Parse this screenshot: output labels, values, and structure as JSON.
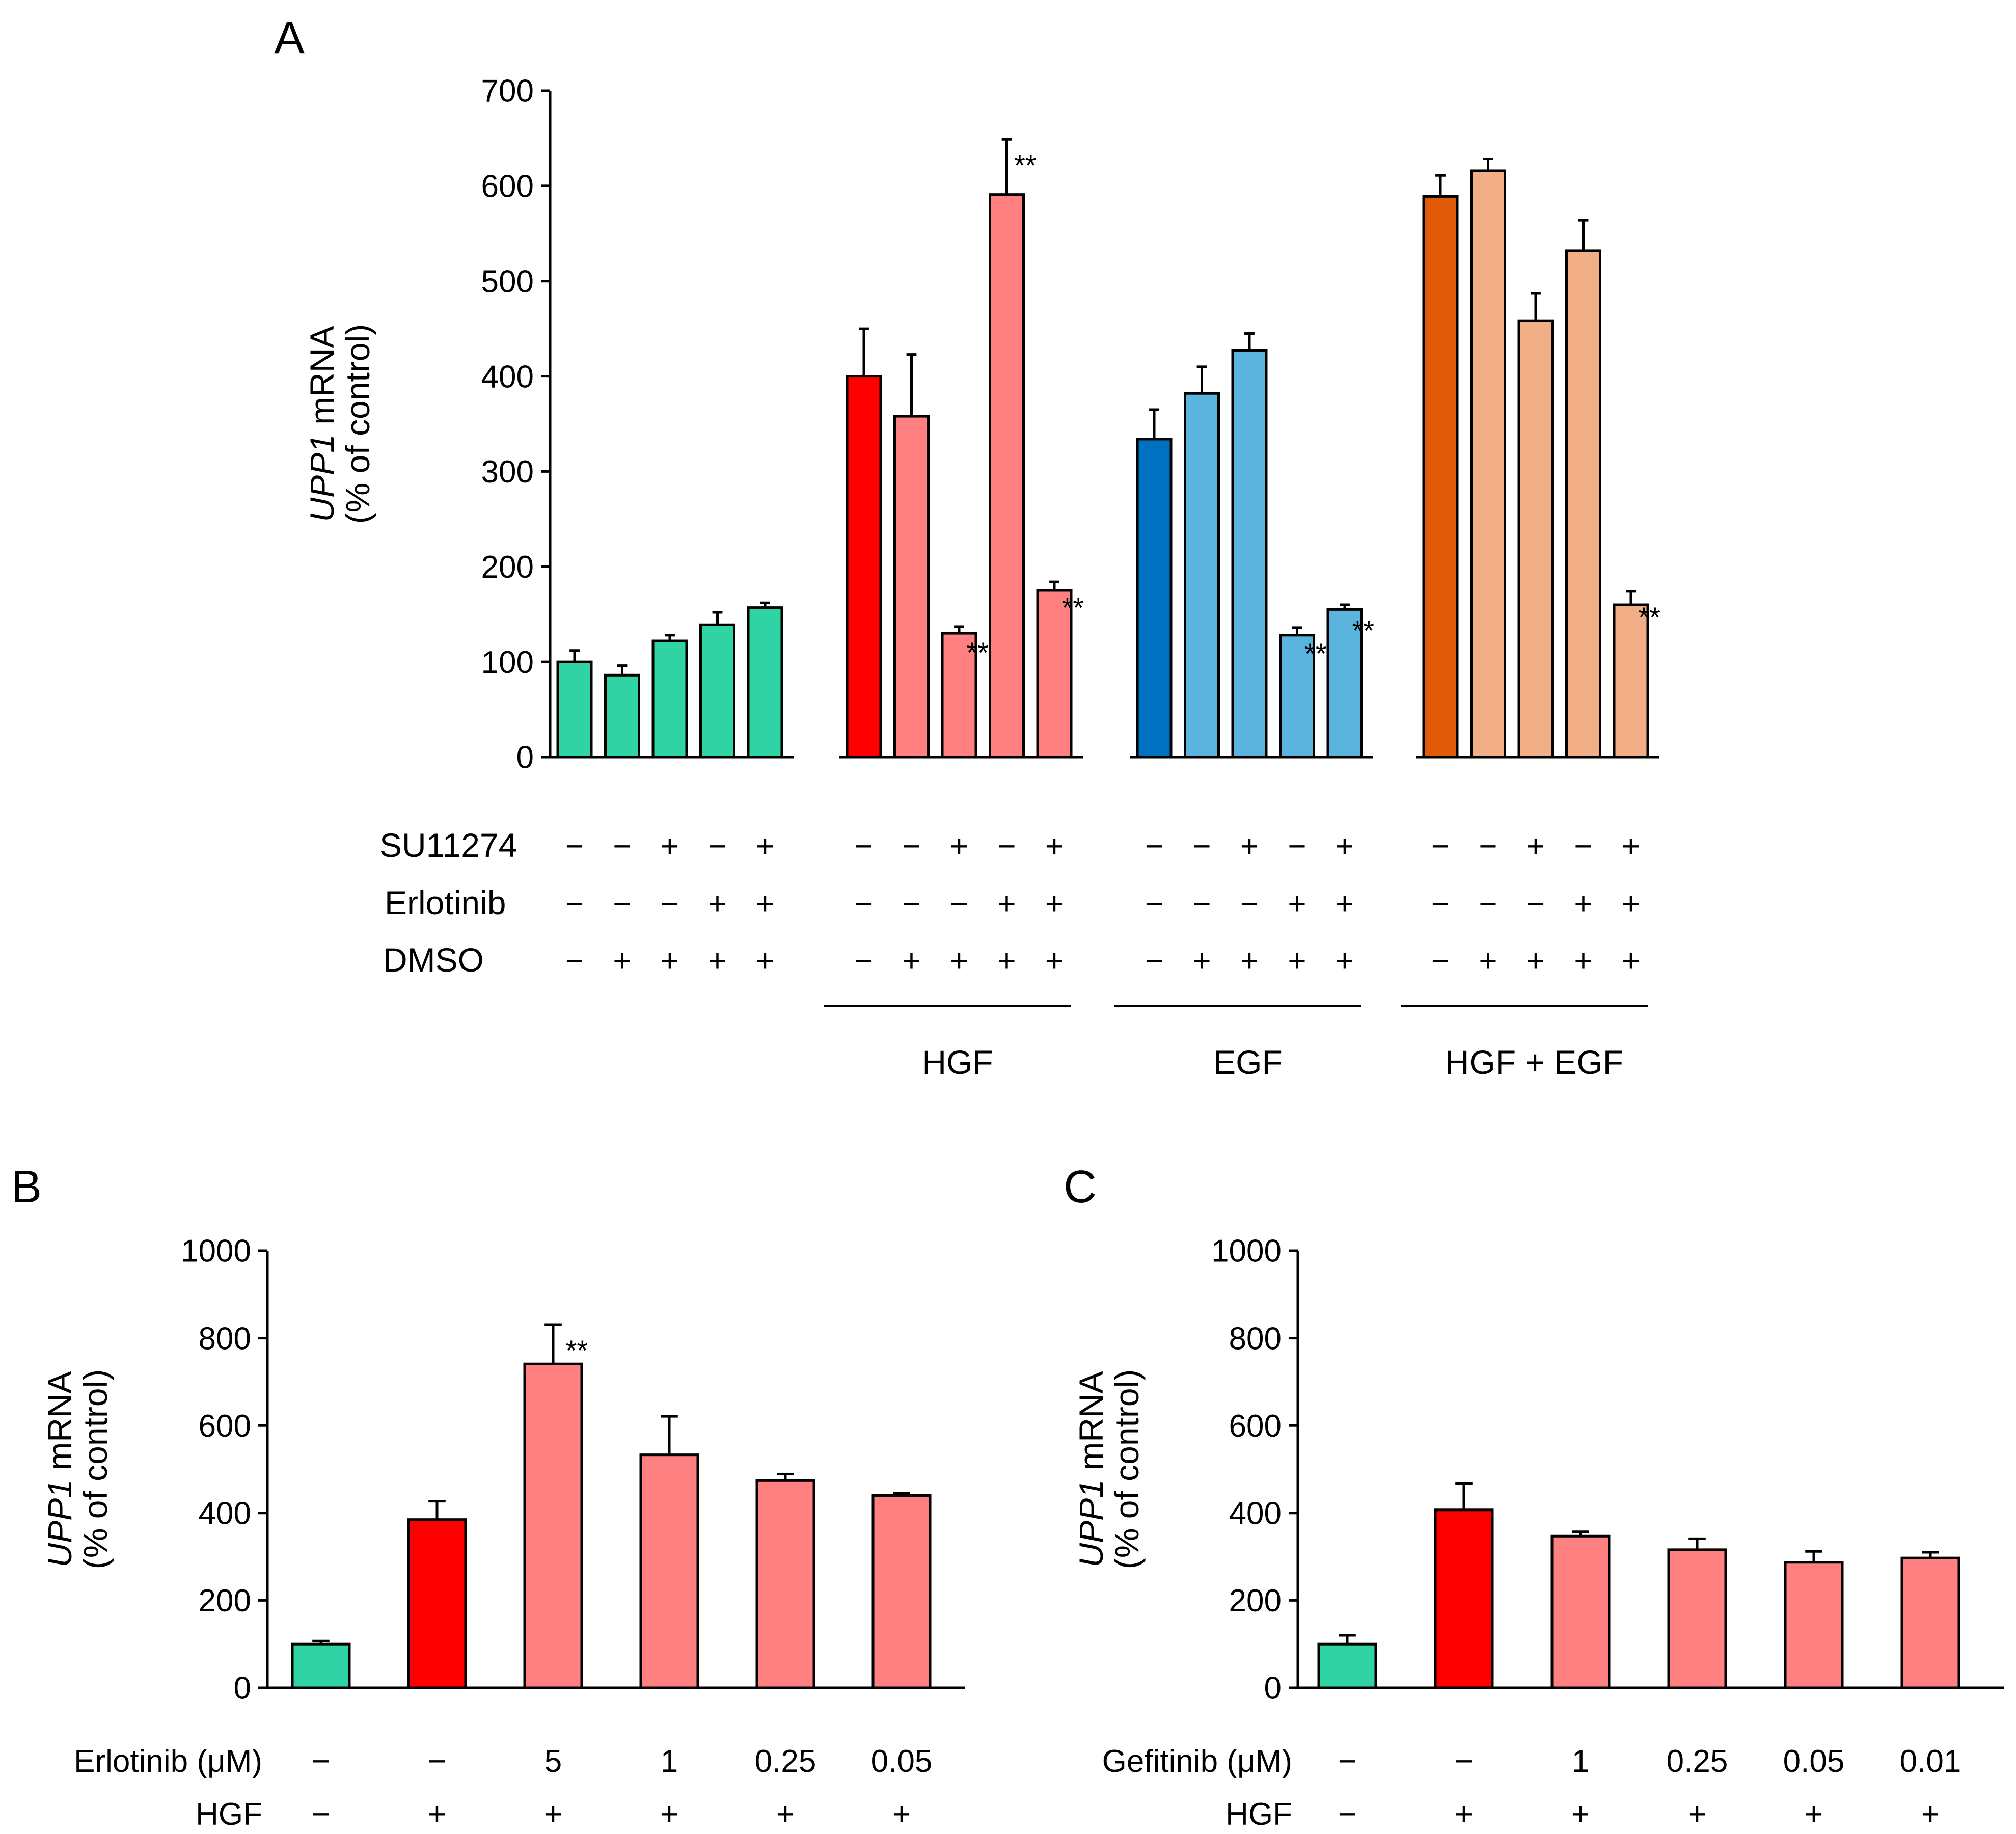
{
  "panels": {
    "A": {
      "label": "A"
    },
    "B": {
      "label": "B"
    },
    "C": {
      "label": "C"
    }
  },
  "colors": {
    "teal": "#2fd3a4",
    "red": "#ff0000",
    "pink": "#ff8080",
    "blue_dark": "#0070c0",
    "blue_light": "#5bb4de",
    "orange_dark": "#e05a08",
    "peach": "#f2af87",
    "axis": "#000000"
  },
  "chart_data": [
    {
      "id": "A",
      "type": "bar",
      "title": "",
      "ylabel_italic": "UPP1",
      "ylabel_rest": " mRNA",
      "ylabel2": "(% of control)",
      "ylim": [
        0,
        700
      ],
      "yticks": [
        "0",
        "100",
        "200",
        "300",
        "400",
        "500",
        "600",
        "700"
      ],
      "groups": [
        {
          "name": "",
          "bars": [
            {
              "value": 100,
              "error": 12,
              "color": "teal",
              "sig": ""
            },
            {
              "value": 86,
              "error": 10,
              "color": "teal",
              "sig": ""
            },
            {
              "value": 122,
              "error": 6,
              "color": "teal",
              "sig": ""
            },
            {
              "value": 139,
              "error": 13,
              "color": "teal",
              "sig": ""
            },
            {
              "value": 157,
              "error": 5,
              "color": "teal",
              "sig": ""
            }
          ]
        },
        {
          "name": "HGF",
          "bars": [
            {
              "value": 400,
              "error": 50,
              "color": "red",
              "sig": ""
            },
            {
              "value": 358,
              "error": 65,
              "color": "pink",
              "sig": ""
            },
            {
              "value": 130,
              "error": 7,
              "color": "pink",
              "sig": "**"
            },
            {
              "value": 591,
              "error": 58,
              "color": "pink",
              "sig": "**"
            },
            {
              "value": 175,
              "error": 9,
              "color": "pink",
              "sig": "**"
            }
          ]
        },
        {
          "name": "EGF",
          "bars": [
            {
              "value": 334,
              "error": 31,
              "color": "blue_dark",
              "sig": ""
            },
            {
              "value": 382,
              "error": 28,
              "color": "blue_light",
              "sig": ""
            },
            {
              "value": 427,
              "error": 18,
              "color": "blue_light",
              "sig": ""
            },
            {
              "value": 128,
              "error": 8,
              "color": "blue_light",
              "sig": "**"
            },
            {
              "value": 155,
              "error": 5,
              "color": "blue_light",
              "sig": "**"
            }
          ]
        },
        {
          "name": "HGF + EGF",
          "bars": [
            {
              "value": 589,
              "error": 22,
              "color": "orange_dark",
              "sig": ""
            },
            {
              "value": 616,
              "error": 12,
              "color": "peach",
              "sig": ""
            },
            {
              "value": 458,
              "error": 29,
              "color": "peach",
              "sig": ""
            },
            {
              "value": 532,
              "error": 32,
              "color": "peach",
              "sig": ""
            },
            {
              "value": 160,
              "error": 14,
              "color": "peach",
              "sig": "**"
            }
          ]
        }
      ],
      "treatments": [
        {
          "label": "SU11274",
          "signs": [
            "−",
            "−",
            "+",
            "−",
            "+"
          ]
        },
        {
          "label": "Erlotinib",
          "signs": [
            "−",
            "−",
            "−",
            "+",
            "+"
          ]
        },
        {
          "label": "DMSO",
          "signs": [
            "−",
            "+",
            "+",
            "+",
            "+"
          ]
        }
      ]
    },
    {
      "id": "B",
      "type": "bar",
      "ylabel_italic": "UPP1",
      "ylabel_rest": " mRNA",
      "ylabel2": "(% of control)",
      "ylim": [
        0,
        1000
      ],
      "yticks": [
        "0",
        "200",
        "400",
        "600",
        "800",
        "1000"
      ],
      "bars": [
        {
          "value": 100,
          "error": 7,
          "color": "teal",
          "sig": ""
        },
        {
          "value": 385,
          "error": 42,
          "color": "red",
          "sig": ""
        },
        {
          "value": 741,
          "error": 90,
          "color": "pink",
          "sig": "**"
        },
        {
          "value": 533,
          "error": 88,
          "color": "pink",
          "sig": ""
        },
        {
          "value": 474,
          "error": 15,
          "color": "pink",
          "sig": ""
        },
        {
          "value": 440,
          "error": 5,
          "color": "pink",
          "sig": ""
        }
      ],
      "row1": {
        "label": "Erlotinib (μM)",
        "values": [
          "−",
          "−",
          "5",
          "1",
          "0.25",
          "0.05"
        ]
      },
      "row2": {
        "label": "HGF",
        "values": [
          "−",
          "+",
          "+",
          "+",
          "+",
          "+"
        ]
      }
    },
    {
      "id": "C",
      "type": "bar",
      "ylabel_italic": "UPP1",
      "ylabel_rest": " mRNA",
      "ylabel2": "(% of control)",
      "ylim": [
        0,
        1000
      ],
      "yticks": [
        "0",
        "200",
        "400",
        "600",
        "800",
        "1000"
      ],
      "bars": [
        {
          "value": 100,
          "error": 20,
          "color": "teal",
          "sig": ""
        },
        {
          "value": 407,
          "error": 60,
          "color": "red",
          "sig": ""
        },
        {
          "value": 347,
          "error": 10,
          "color": "pink",
          "sig": ""
        },
        {
          "value": 316,
          "error": 25,
          "color": "pink",
          "sig": ""
        },
        {
          "value": 287,
          "error": 25,
          "color": "pink",
          "sig": ""
        },
        {
          "value": 297,
          "error": 13,
          "color": "pink",
          "sig": ""
        }
      ],
      "row1": {
        "label": "Gefitinib (μM)",
        "values": [
          "−",
          "−",
          "1",
          "0.25",
          "0.05",
          "0.01"
        ]
      },
      "row2": {
        "label": "HGF",
        "values": [
          "−",
          "+",
          "+",
          "+",
          "+",
          "+"
        ]
      }
    }
  ]
}
